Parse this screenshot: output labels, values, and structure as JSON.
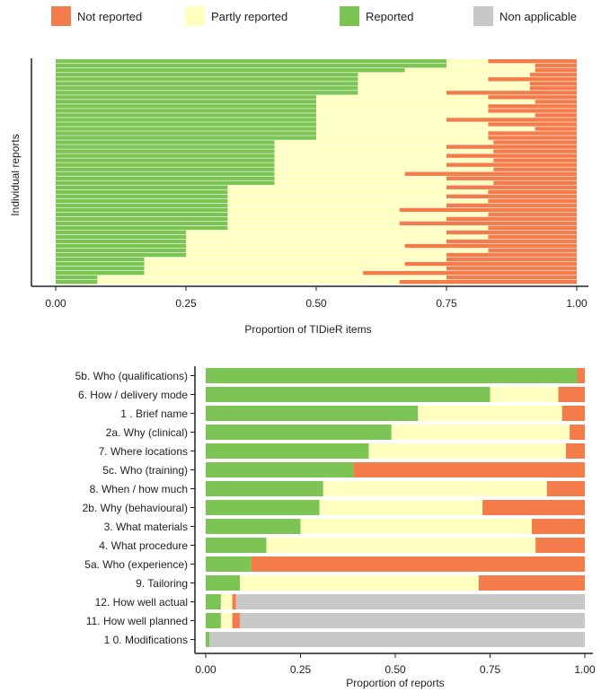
{
  "colors": {
    "not_reported": "#f47c4a",
    "partly_reported": "#ffffc0",
    "reported": "#7cc453",
    "non_applicable": "#c8c8c8",
    "axis": "#222222"
  },
  "legend": [
    {
      "key": "not_reported",
      "label": "Not reported"
    },
    {
      "key": "partly_reported",
      "label": "Partly reported"
    },
    {
      "key": "reported",
      "label": "Reported"
    },
    {
      "key": "non_applicable",
      "label": "Non applicable"
    }
  ],
  "chart_data": [
    {
      "type": "bar",
      "orientation": "horizontal-stacked",
      "xlabel": "Proportion of TIDieR items",
      "ylabel": "Individual reports",
      "xlim": [
        0,
        1
      ],
      "xticks": [
        "0.00",
        "0.25",
        "0.50",
        "0.75",
        "1.00"
      ],
      "stack_order": [
        "reported",
        "partly_reported",
        "not_reported"
      ],
      "rows": [
        [
          0.75,
          0.08,
          0.08
        ],
        [
          0.75,
          0.17,
          0.08
        ],
        [
          0.67,
          0.25,
          0.08
        ],
        [
          0.58,
          0.33,
          0.08
        ],
        [
          0.58,
          0.25,
          0.17
        ],
        [
          0.58,
          0.33,
          0.08
        ],
        [
          0.58,
          0.33,
          0.08
        ],
        [
          0.58,
          0.17,
          0.25
        ],
        [
          0.5,
          0.33,
          0.17
        ],
        [
          0.5,
          0.42,
          0.08
        ],
        [
          0.5,
          0.33,
          0.17
        ],
        [
          0.5,
          0.33,
          0.17
        ],
        [
          0.5,
          0.42,
          0.08
        ],
        [
          0.5,
          0.25,
          0.25
        ],
        [
          0.5,
          0.33,
          0.17
        ],
        [
          0.5,
          0.42,
          0.08
        ],
        [
          0.5,
          0.33,
          0.17
        ],
        [
          0.5,
          0.33,
          0.17
        ],
        [
          0.42,
          0.42,
          0.17
        ],
        [
          0.42,
          0.33,
          0.25
        ],
        [
          0.42,
          0.42,
          0.17
        ],
        [
          0.42,
          0.33,
          0.25
        ],
        [
          0.42,
          0.42,
          0.17
        ],
        [
          0.42,
          0.33,
          0.25
        ],
        [
          0.42,
          0.42,
          0.17
        ],
        [
          0.42,
          0.25,
          0.33
        ],
        [
          0.42,
          0.33,
          0.25
        ],
        [
          0.42,
          0.42,
          0.17
        ],
        [
          0.33,
          0.42,
          0.25
        ],
        [
          0.33,
          0.5,
          0.17
        ],
        [
          0.33,
          0.42,
          0.25
        ],
        [
          0.33,
          0.5,
          0.17
        ],
        [
          0.33,
          0.42,
          0.25
        ],
        [
          0.33,
          0.33,
          0.33
        ],
        [
          0.33,
          0.5,
          0.17
        ],
        [
          0.33,
          0.42,
          0.25
        ],
        [
          0.33,
          0.33,
          0.33
        ],
        [
          0.33,
          0.5,
          0.17
        ],
        [
          0.25,
          0.5,
          0.25
        ],
        [
          0.25,
          0.58,
          0.17
        ],
        [
          0.25,
          0.5,
          0.25
        ],
        [
          0.25,
          0.42,
          0.33
        ],
        [
          0.25,
          0.58,
          0.17
        ],
        [
          0.25,
          0.5,
          0.25
        ],
        [
          0.17,
          0.58,
          0.25
        ],
        [
          0.17,
          0.5,
          0.33
        ],
        [
          0.17,
          0.58,
          0.25
        ],
        [
          0.17,
          0.42,
          0.42
        ],
        [
          0.08,
          0.67,
          0.25
        ],
        [
          0.08,
          0.58,
          0.33
        ]
      ]
    },
    {
      "type": "bar",
      "orientation": "horizontal-stacked",
      "xlabel": "Proportion of reports",
      "ylabel": "",
      "xlim": [
        0,
        1
      ],
      "xticks": [
        "0.00",
        "0.25",
        "0.50",
        "0.75",
        "1.00"
      ],
      "stack_order": [
        "reported",
        "partly_reported",
        "not_reported",
        "non_applicable"
      ],
      "categories": [
        "5b. Who (qualifications)",
        "6. How / delivery mode",
        "1 . Brief name",
        "2a. Why (clinical)",
        "7. Where locations",
        "5c. Who (training)",
        "8. When / how much",
        "2b. Why (behavioural)",
        "3. What materials",
        "4. What procedure",
        "5a. Who (experience)",
        "9. Tailoring",
        "12. How well actual",
        "11. How well planned",
        "1 0. Modifications"
      ],
      "series": [
        {
          "name": "Reported",
          "key": "reported",
          "values": [
            0.98,
            0.75,
            0.56,
            0.49,
            0.43,
            0.39,
            0.31,
            0.3,
            0.25,
            0.16,
            0.12,
            0.09,
            0.04,
            0.04,
            0.01
          ]
        },
        {
          "name": "Partly reported",
          "key": "partly_reported",
          "values": [
            0.0,
            0.18,
            0.38,
            0.47,
            0.52,
            0.0,
            0.59,
            0.43,
            0.61,
            0.71,
            0.0,
            0.63,
            0.03,
            0.03,
            0.0
          ]
        },
        {
          "name": "Not reported",
          "key": "not_reported",
          "values": [
            0.02,
            0.07,
            0.06,
            0.04,
            0.05,
            0.61,
            0.1,
            0.27,
            0.14,
            0.13,
            0.88,
            0.28,
            0.01,
            0.02,
            0.0
          ]
        },
        {
          "name": "Non applicable",
          "key": "non_applicable",
          "values": [
            0.0,
            0.0,
            0.0,
            0.0,
            0.0,
            0.0,
            0.0,
            0.0,
            0.0,
            0.0,
            0.0,
            0.0,
            0.92,
            0.91,
            0.99
          ]
        }
      ]
    }
  ]
}
